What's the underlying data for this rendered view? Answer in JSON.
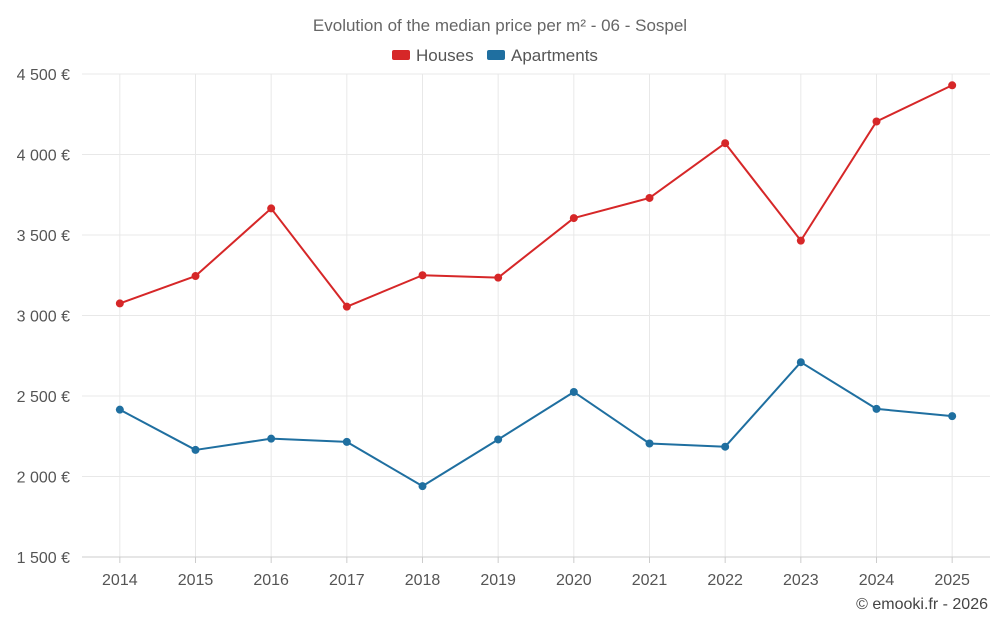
{
  "chart_data": {
    "type": "line",
    "title": "Evolution of the median price per m² - 06 - Sospel",
    "categories": [
      "2014",
      "2015",
      "2016",
      "2017",
      "2018",
      "2019",
      "2020",
      "2021",
      "2022",
      "2023",
      "2024",
      "2025"
    ],
    "series": [
      {
        "name": "Houses",
        "color": "#d62728",
        "values": [
          3075,
          3245,
          3665,
          3055,
          3250,
          3235,
          3605,
          3730,
          4070,
          3465,
          4205,
          4430
        ]
      },
      {
        "name": "Apartments",
        "color": "#1f6fa0",
        "values": [
          2415,
          2165,
          2235,
          2215,
          1940,
          2230,
          2525,
          2205,
          2185,
          2710,
          2420,
          2375
        ]
      }
    ],
    "y_ticks": [
      1500,
      2000,
      2500,
      3000,
      3500,
      4000,
      4500
    ],
    "y_tick_labels": [
      "1 500 €",
      "2 000 €",
      "2 500 €",
      "3 000 €",
      "3 500 €",
      "4 000 €",
      "4 500 €"
    ],
    "ylim": [
      1500,
      4500
    ],
    "xlabel": "",
    "ylabel": "",
    "grid": true,
    "legend_position": "top-center"
  },
  "credit": "© emooki.fr - 2026"
}
